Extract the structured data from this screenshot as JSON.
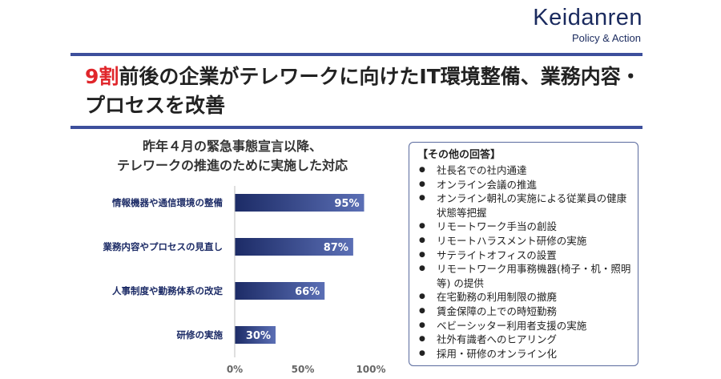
{
  "brand": {
    "name": "Keidanren",
    "sub": "Policy & Action"
  },
  "headline": {
    "accent": "9割",
    "rest": "前後の企業がテレワークに向けたIT環境整備、業務内容・プロセスを改善"
  },
  "chart_data": {
    "type": "bar",
    "orientation": "horizontal",
    "title_line1": "昨年４月の緊急事態宣言以降、",
    "title_line2": "テレワークの推進のために実施した対応",
    "categories": [
      "情報機器や通信環境の整備",
      "業務内容やプロセスの見直し",
      "人事制度や勤務体系の改定",
      "研修の実施"
    ],
    "values": [
      95,
      87,
      66,
      30
    ],
    "value_labels": [
      "95%",
      "87%",
      "66%",
      "30%"
    ],
    "xlim": [
      0,
      100
    ],
    "xticks": [
      "0%",
      "50%",
      "100%"
    ],
    "bar_color_start": "#1c2b66",
    "bar_color_end": "#5b6fb5",
    "grid": false
  },
  "other_answers": {
    "title": "【その他の回答】",
    "items": [
      "社長名での社内通達",
      "オンライン会議の推進",
      "オンライン朝礼の実施による従業員の健康状態等把握",
      "リモートワーク手当の創設",
      "リモートハラスメント研修の実施",
      "サテライトオフィスの設置",
      "リモートワーク用事務機器(椅子・机・照明等) の提供",
      "在宅勤務の利用制限の撤廃",
      "賃金保障の上での時短勤務",
      "ベビーシッター利用者支援の実施",
      "社外有識者へのヒアリング",
      "採用・研修のオンライン化"
    ]
  },
  "colors": {
    "accent": "#e0262b",
    "rule": "#3d4f9c",
    "brand": "#1a2a5e"
  }
}
